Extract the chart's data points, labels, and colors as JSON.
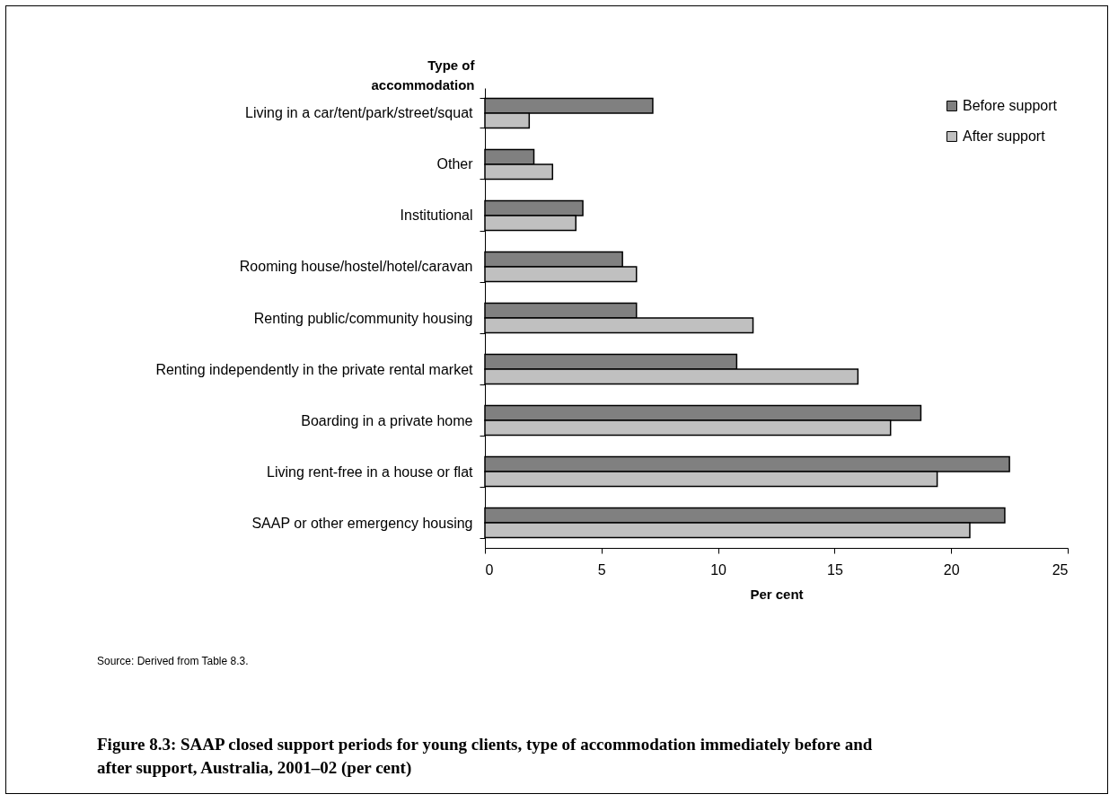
{
  "chart_data": {
    "type": "bar",
    "orientation": "horizontal",
    "title": "Figure 8.3: SAAP closed support periods for young clients, type of accommodation immediately before and after support, Australia, 2001–02 (per cent)",
    "xlabel": "Per cent",
    "ylabel": "Type of accommodation",
    "categories": [
      "Living in a car/tent/park/street/squat",
      "Other",
      "Institutional",
      "Rooming house/hostel/hotel/caravan",
      "Renting public/community housing",
      "Renting independently in the private rental market",
      "Boarding in a private home",
      "Living rent-free in a house or flat",
      "SAAP or other emergency housing"
    ],
    "series": [
      {
        "name": "Before support",
        "color": "#808080",
        "values": [
          7.2,
          2.1,
          4.2,
          5.9,
          6.5,
          10.8,
          18.7,
          22.5,
          22.3
        ]
      },
      {
        "name": "After support",
        "color": "#c0c0c0",
        "values": [
          1.9,
          2.9,
          3.9,
          6.5,
          11.5,
          16.0,
          17.4,
          19.4,
          20.8
        ]
      }
    ],
    "xlim": [
      0,
      25
    ],
    "xticks": [
      0,
      5,
      10,
      15,
      20,
      25
    ],
    "grid": false,
    "legend": "top right",
    "annotations": [
      "Source: Derived from Table 8.3."
    ]
  }
}
